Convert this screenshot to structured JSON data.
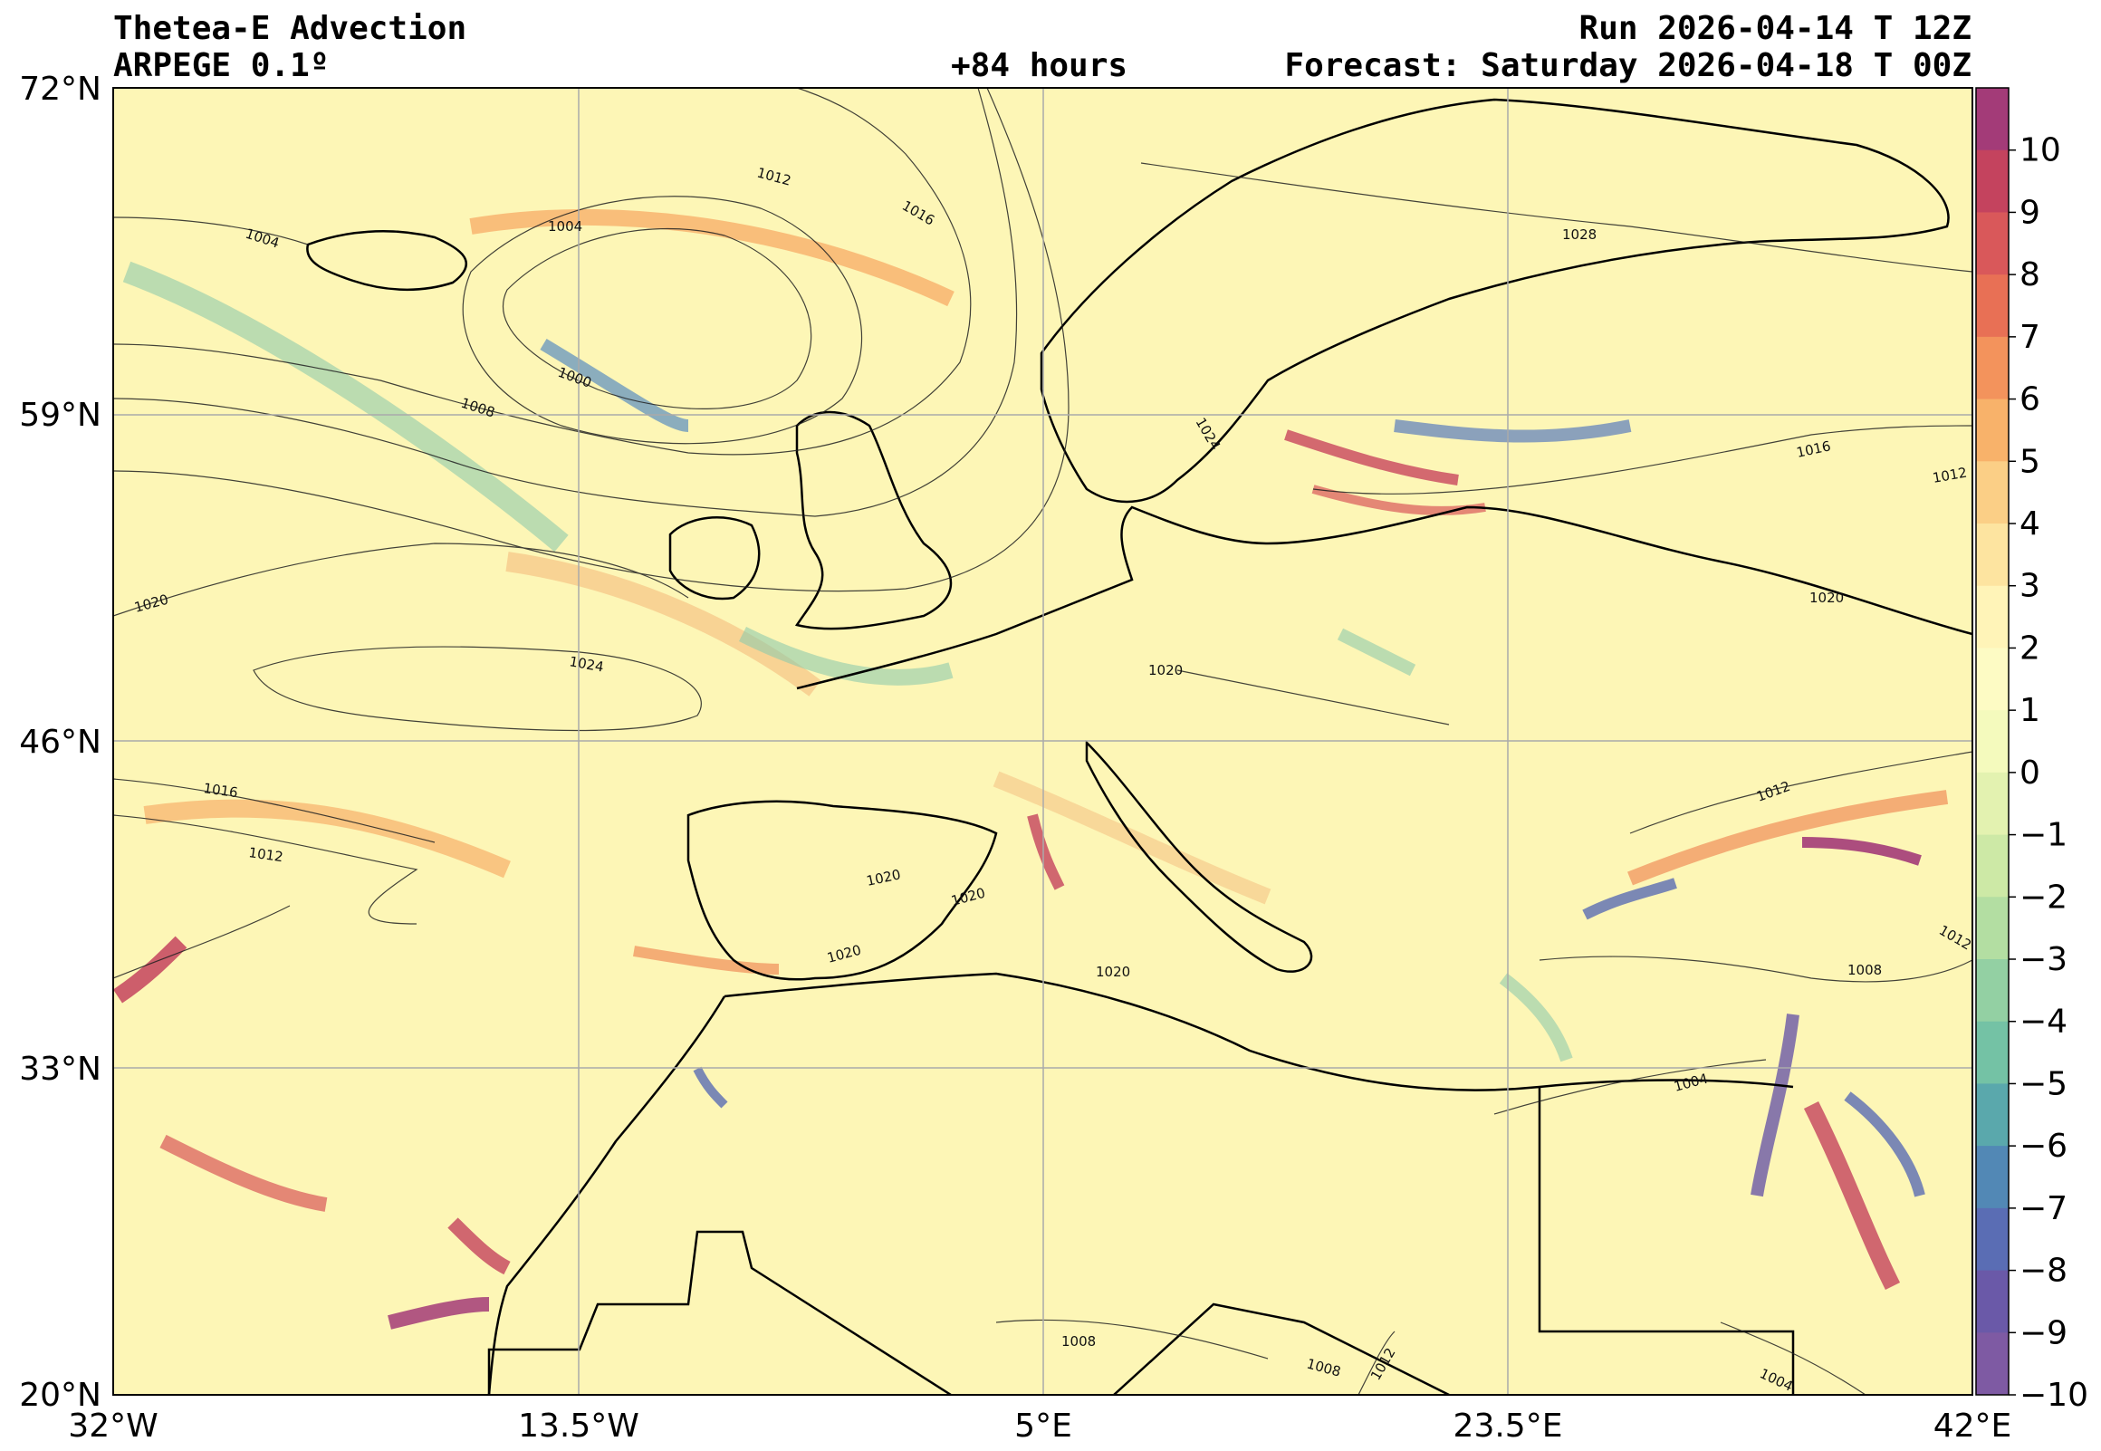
{
  "header": {
    "title": "Thetea-E Advection",
    "model": "ARPEGE 0.1º",
    "lead_time": "+84 hours",
    "run": "Run 2026-04-14 T 12Z",
    "forecast": "Forecast: Saturday 2026-04-18 T 00Z"
  },
  "map": {
    "lon_ticks": [
      "32°W",
      "13.5°W",
      "5°E",
      "23.5°E",
      "42°E"
    ],
    "lat_ticks": [
      "72°N",
      "59°N",
      "46°N",
      "33°N",
      "20°N"
    ],
    "background_color": "#fdf6b6",
    "isobar_labels": [
      "1004",
      "1004",
      "1012",
      "1016",
      "1028",
      "1000",
      "1008",
      "1024",
      "1016",
      "1012",
      "1020",
      "1024",
      "1020",
      "1020",
      "1016",
      "1012",
      "1020",
      "1020",
      "1020",
      "1020",
      "1012",
      "1012",
      "1008",
      "1004",
      "1008",
      "1008",
      "1012",
      "1004"
    ]
  },
  "colorbar": {
    "ticks": [
      "10",
      "9",
      "8",
      "7",
      "6",
      "5",
      "4",
      "3",
      "2",
      "1",
      "0",
      "−1",
      "−2",
      "−3",
      "−4",
      "−5",
      "−6",
      "−7",
      "−8",
      "−9",
      "−10"
    ],
    "colors": [
      "#a33b78",
      "#c4435e",
      "#d9585a",
      "#e87055",
      "#f3935c",
      "#f8b26a",
      "#fbcf86",
      "#fde4a0",
      "#fff4b8",
      "#fdfbc4",
      "#f4fabd",
      "#e3f2b0",
      "#cde9a6",
      "#b3dea2",
      "#93d0a3",
      "#74c2a5",
      "#5aa8ac",
      "#5288b5",
      "#5a6db4",
      "#6a59a8",
      "#7e5aa3"
    ],
    "colors_note": "colours from top (+10) to bottom (-10)"
  }
}
